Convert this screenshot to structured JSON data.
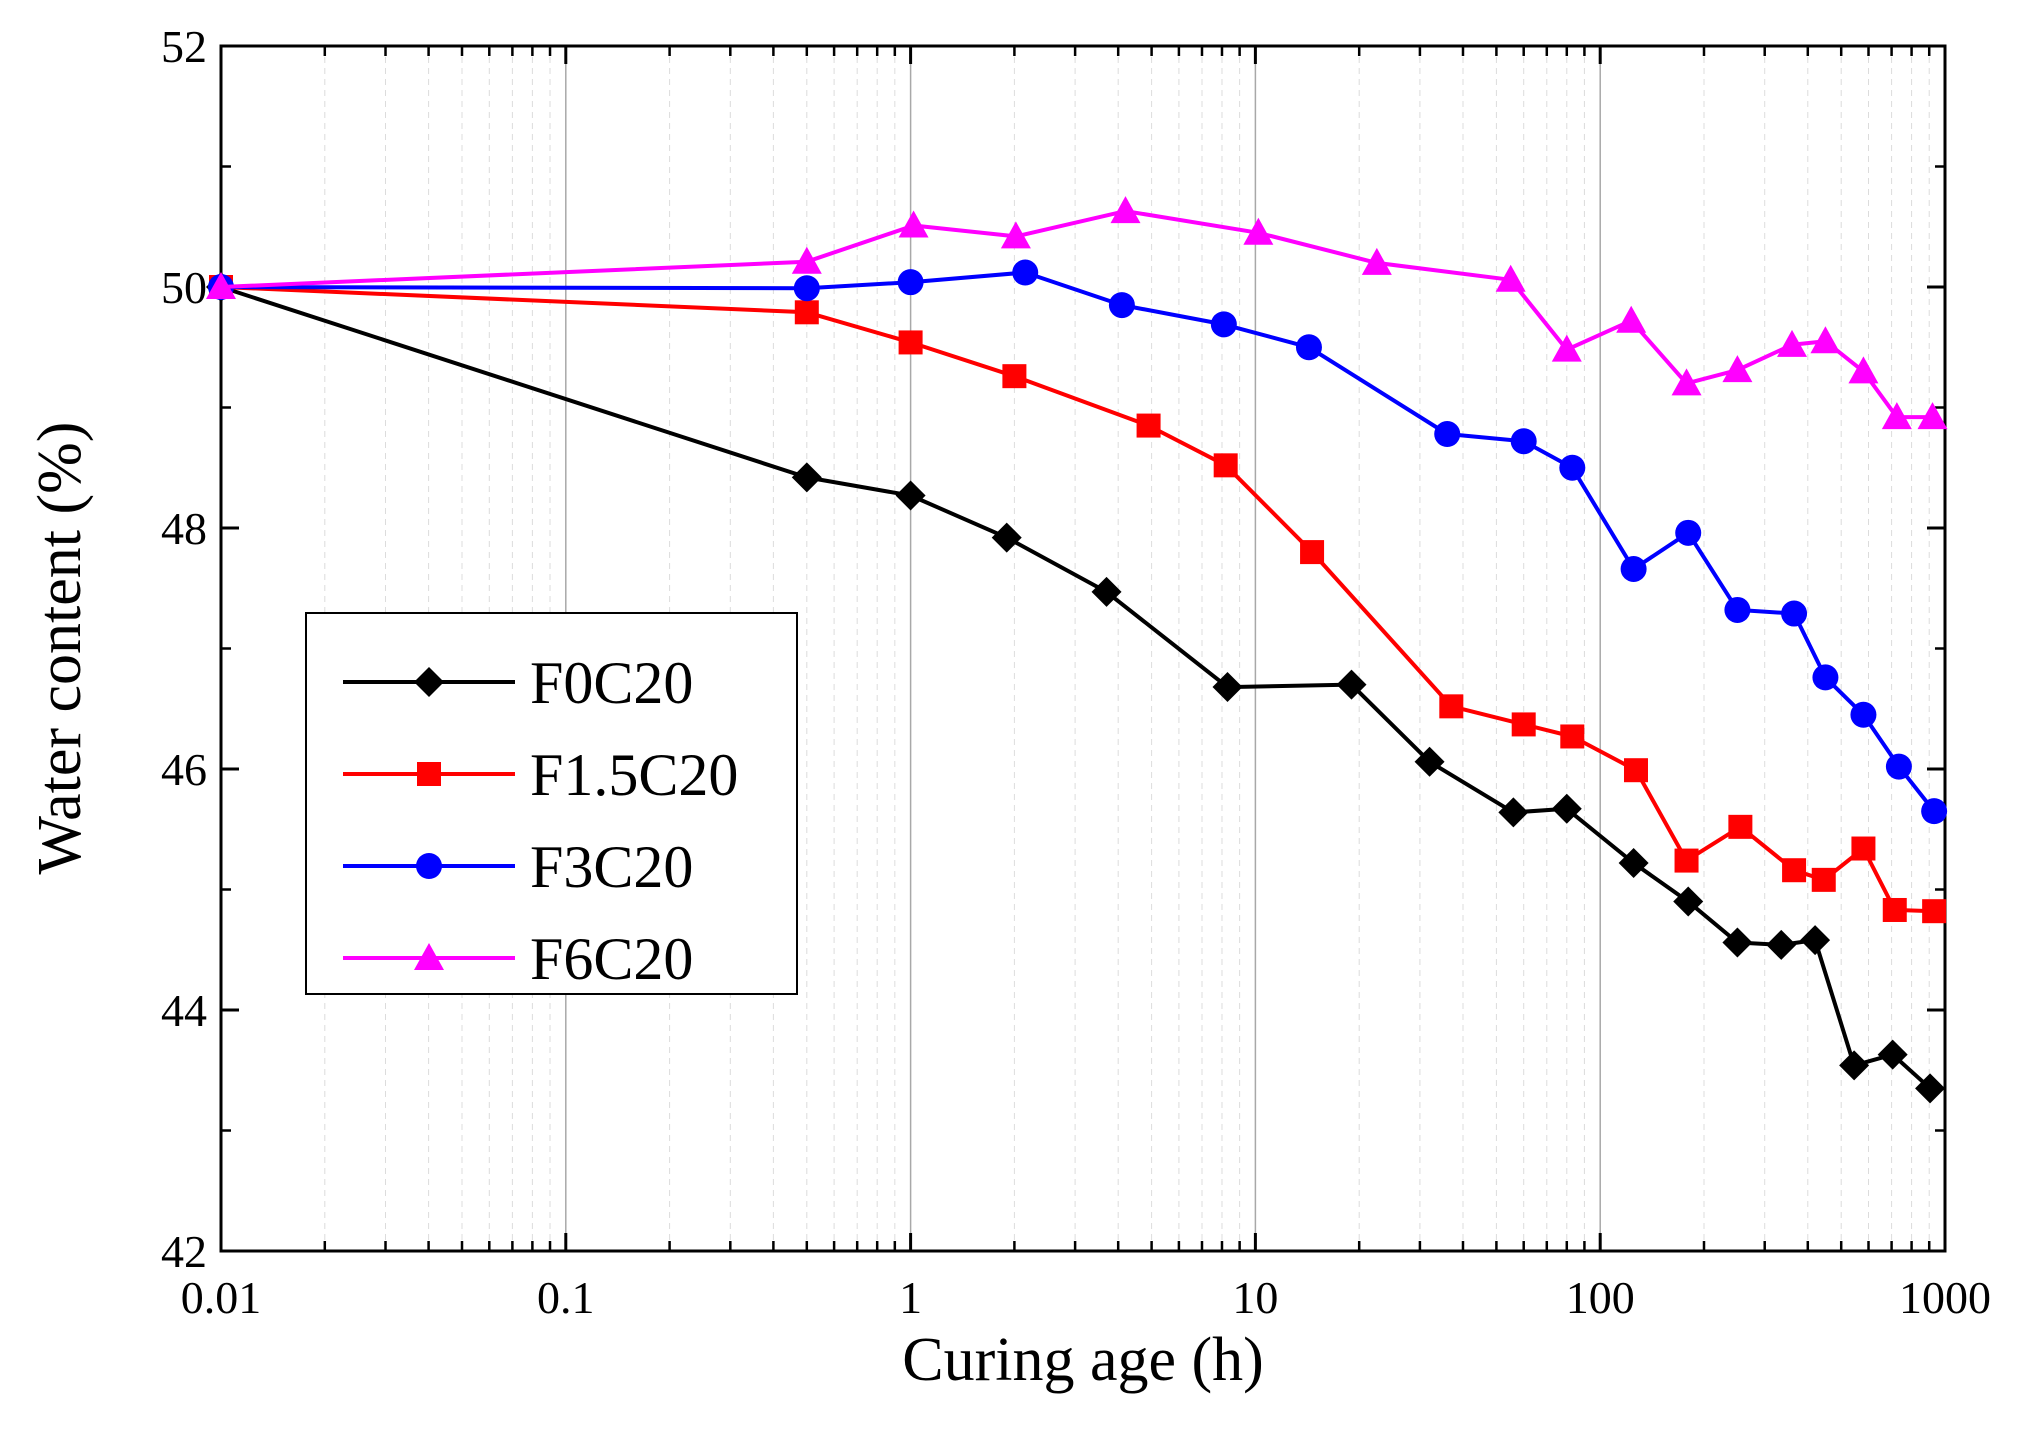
{
  "chart_data": {
    "type": "line",
    "title": "",
    "xlabel": "Curing age (h)",
    "ylabel": "Water content (%)",
    "xscale": "log",
    "xlim": [
      0.01,
      1000
    ],
    "ylim": [
      42,
      52
    ],
    "grid": "vertical, log minor",
    "legend_position": "center-left",
    "x_ticks": [
      {
        "value": 0.01,
        "label": "0.01"
      },
      {
        "value": 0.1,
        "label": "0.1"
      },
      {
        "value": 1,
        "label": "1"
      },
      {
        "value": 10,
        "label": "10"
      },
      {
        "value": 100,
        "label": "100"
      },
      {
        "value": 1000,
        "label": "1000"
      }
    ],
    "y_ticks": [
      {
        "value": 42,
        "label": "42"
      },
      {
        "value": 44,
        "label": "44"
      },
      {
        "value": 46,
        "label": "46"
      },
      {
        "value": 48,
        "label": "48"
      },
      {
        "value": 50,
        "label": "50"
      },
      {
        "value": 52,
        "label": "52"
      }
    ],
    "series": [
      {
        "name": "F0C20",
        "color": "#000000",
        "marker": "diamond",
        "x": [
          0.01,
          0.5,
          1,
          1.9,
          3.7,
          8.3,
          19,
          32,
          56,
          80,
          125,
          180,
          250,
          335,
          420,
          545,
          705,
          905
        ],
        "y": [
          50.0,
          48.42,
          48.27,
          47.92,
          47.47,
          46.68,
          46.7,
          46.06,
          45.64,
          45.67,
          45.22,
          44.9,
          44.56,
          44.54,
          44.58,
          43.54,
          43.63,
          43.35
        ]
      },
      {
        "name": "F1.5C20",
        "color": "#ff0000",
        "marker": "square",
        "x": [
          0.01,
          0.5,
          1,
          2,
          4.9,
          8.2,
          14.6,
          37,
          60,
          83,
          127,
          178,
          255,
          365,
          445,
          580,
          715,
          930
        ],
        "y": [
          50.0,
          49.79,
          49.54,
          49.26,
          48.85,
          48.52,
          47.8,
          46.52,
          46.37,
          46.27,
          45.99,
          45.24,
          45.52,
          45.16,
          45.08,
          45.34,
          44.83,
          44.82
        ]
      },
      {
        "name": "F3C20",
        "color": "#0000ff",
        "marker": "circle",
        "x": [
          0.01,
          0.5,
          1,
          2.15,
          4.1,
          8.1,
          14.3,
          36,
          60,
          83,
          125,
          180,
          250,
          365,
          450,
          580,
          735,
          930
        ],
        "y": [
          50.0,
          49.99,
          50.04,
          50.12,
          49.85,
          49.69,
          49.5,
          48.78,
          48.72,
          48.5,
          47.66,
          47.96,
          47.32,
          47.29,
          46.76,
          46.45,
          46.02,
          45.65
        ]
      },
      {
        "name": "F6C20",
        "color": "#ff00ff",
        "marker": "triangle",
        "x": [
          0.01,
          0.5,
          1.02,
          2.02,
          4.2,
          10.2,
          22.5,
          55,
          80,
          123,
          178,
          250,
          360,
          450,
          580,
          725,
          920
        ],
        "y": [
          50.0,
          50.21,
          50.51,
          50.42,
          50.63,
          50.45,
          50.2,
          50.06,
          49.48,
          49.72,
          49.2,
          49.31,
          49.52,
          49.55,
          49.3,
          48.92,
          48.92
        ]
      }
    ]
  }
}
